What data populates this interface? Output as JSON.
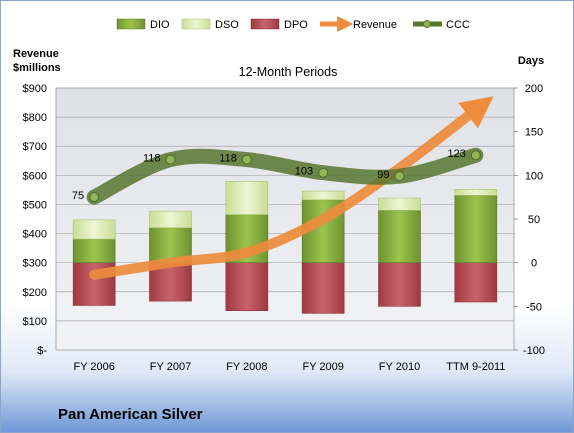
{
  "company": "Pan American Silver",
  "chart_data": {
    "type": "bar",
    "title": "12-Month Periods",
    "left_axis": {
      "label_line1": "Revenue",
      "label_line2": "$millions",
      "range": [
        0,
        900
      ],
      "ticks": [
        "$-",
        "$100",
        "$200",
        "$300",
        "$400",
        "$500",
        "$600",
        "$700",
        "$800",
        "$900"
      ]
    },
    "right_axis": {
      "label": "Days",
      "range": [
        -100,
        200
      ],
      "ticks": [
        "-100",
        "-50",
        "0",
        "50",
        "100",
        "150",
        "200"
      ]
    },
    "categories": [
      "FY 2006",
      "FY 2007",
      "FY 2008",
      "FY 2009",
      "FY 2010",
      "TTM 9-2011"
    ],
    "legend": [
      "DIO",
      "DSO",
      "DPO",
      "Revenue",
      "CCC"
    ],
    "legend_position": "top",
    "grid": true,
    "series": [
      {
        "name": "DIO",
        "axis": "days",
        "values": [
          27,
          40,
          55,
          72,
          60,
          77
        ],
        "color": "#7ea33a"
      },
      {
        "name": "DSO",
        "axis": "days",
        "values": [
          22,
          19,
          38,
          10,
          14,
          7
        ],
        "color": "#d6e8a6"
      },
      {
        "name": "DPO",
        "axis": "days",
        "values": [
          -49,
          -44,
          -55,
          -58,
          -50,
          -45
        ],
        "color": "#b5464f"
      },
      {
        "name": "Revenue",
        "axis": "revenue",
        "values": [
          258,
          300,
          335,
          450,
          625,
          825
        ],
        "color": "#ee8b3c"
      },
      {
        "name": "CCC",
        "axis": "days",
        "values": [
          75,
          118,
          118,
          103,
          99,
          123
        ],
        "color": "#57752f",
        "data_labels": [
          "75",
          "118",
          "118",
          "103",
          "99",
          "123"
        ]
      }
    ]
  }
}
